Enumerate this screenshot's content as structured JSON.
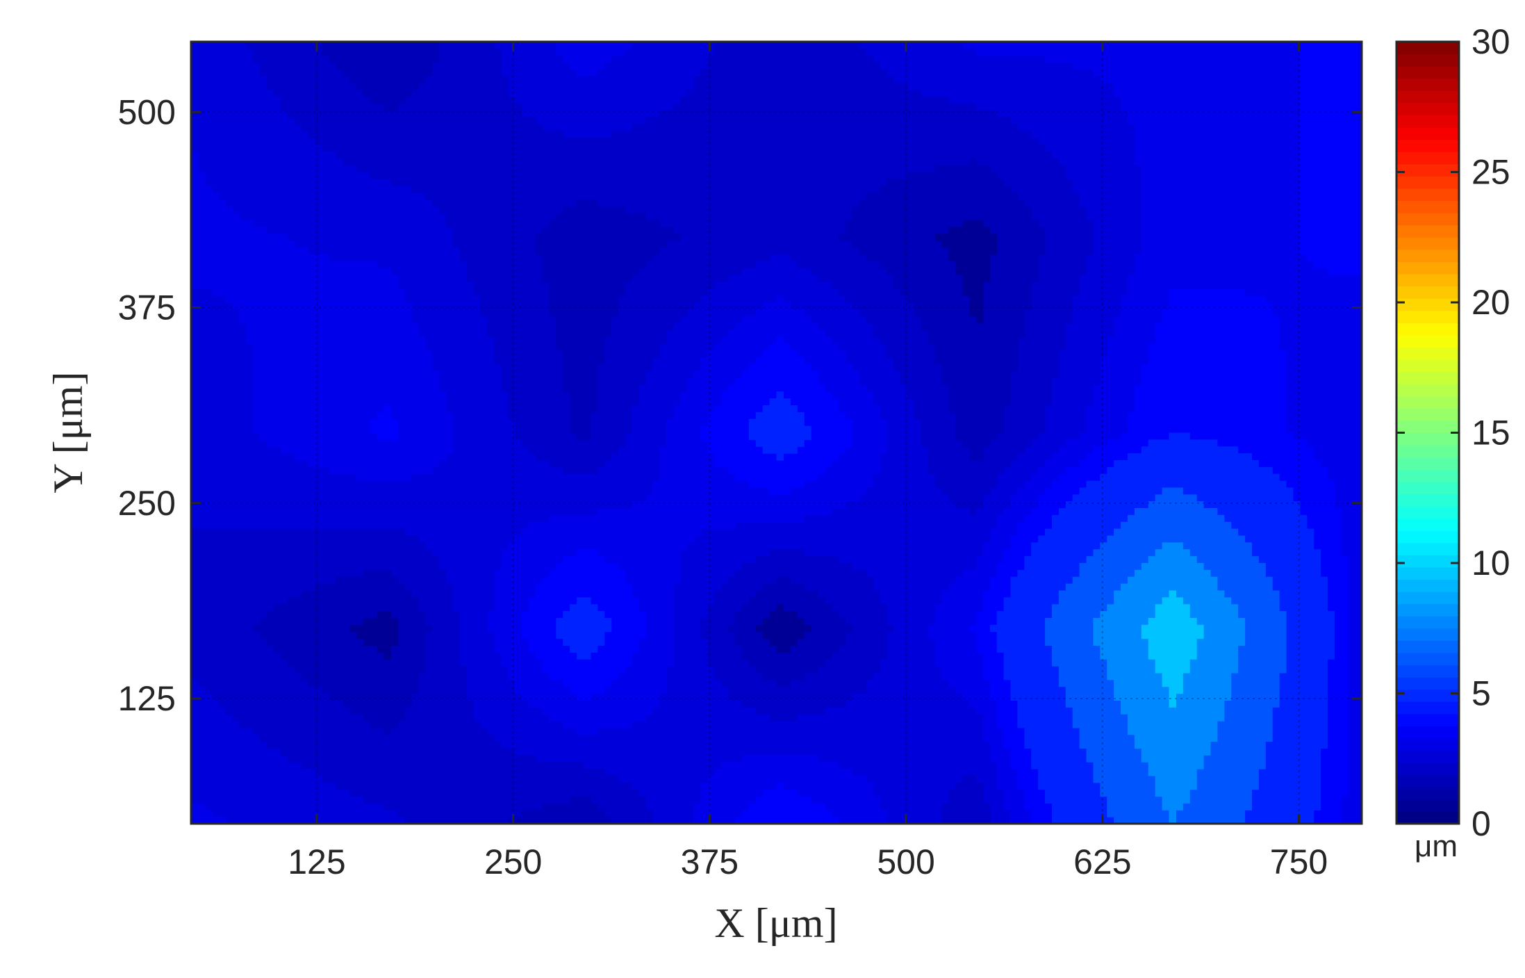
{
  "chart_data": {
    "type": "heatmap",
    "subtype": "filled-contour",
    "title": "",
    "xlabel": "X [μm]",
    "ylabel": "Y [μm]",
    "xlim": [
      45,
      790
    ],
    "ylim": [
      45,
      545
    ],
    "xticks": [
      125,
      250,
      375,
      500,
      625,
      750
    ],
    "yticks": [
      125,
      250,
      375,
      500
    ],
    "grid": true,
    "colormap": "jet",
    "colorbar": {
      "position": "right",
      "range": [
        0,
        30
      ],
      "ticks": [
        0,
        5,
        10,
        15,
        20,
        25,
        30
      ],
      "unit_label": "μm"
    },
    "x": [
      45,
      170,
      295,
      420,
      545,
      670,
      790
    ],
    "y": [
      45,
      170,
      295,
      420,
      545
    ],
    "z": [
      [
        3.0,
        2.5,
        1.5,
        4.0,
        2.0,
        7.0,
        3.0
      ],
      [
        2.2,
        1.2,
        4.5,
        1.0,
        3.5,
        9.5,
        3.0
      ],
      [
        2.6,
        3.5,
        1.8,
        4.5,
        1.6,
        4.0,
        3.0
      ],
      [
        3.0,
        2.8,
        1.6,
        2.2,
        1.2,
        3.2,
        3.5
      ],
      [
        2.8,
        1.4,
        3.2,
        2.0,
        3.0,
        3.0,
        3.6
      ]
    ],
    "contour_levels": [
      0,
      1.4,
      1.9,
      2.4,
      2.9,
      3.4,
      4.0,
      5.5,
      7.0,
      8.5,
      10.5
    ]
  }
}
